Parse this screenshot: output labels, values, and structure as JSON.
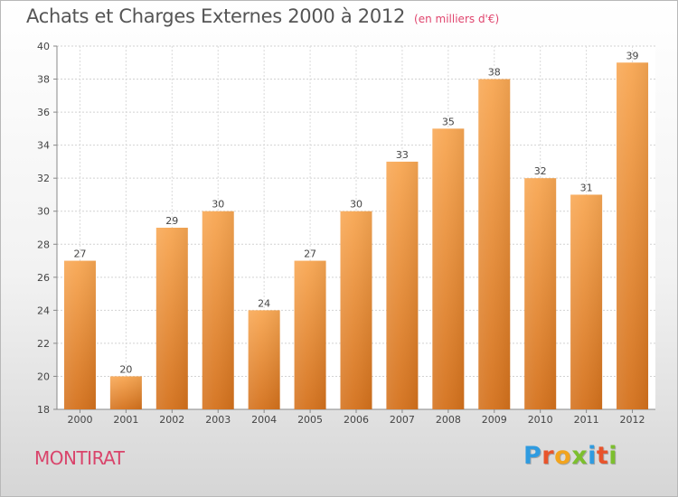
{
  "chart_data": {
    "type": "bar",
    "title": "Achats et Charges Externes 2000 à 2012",
    "subtitle": "(en milliers d'€)",
    "categories": [
      "2000",
      "2001",
      "2002",
      "2003",
      "2004",
      "2005",
      "2006",
      "2007",
      "2008",
      "2009",
      "2010",
      "2011",
      "2012"
    ],
    "values": [
      27,
      20,
      29,
      30,
      24,
      27,
      30,
      33,
      35,
      38,
      32,
      31,
      39
    ],
    "ylim": [
      18,
      40
    ],
    "yticks": [
      18,
      20,
      22,
      24,
      26,
      28,
      30,
      32,
      34,
      36,
      38,
      40
    ],
    "grid": true,
    "bar_color": "#f08a2b"
  },
  "footer": {
    "commune": "MONTIRAT",
    "brand": "Proxiti",
    "brand_colors": [
      "#2f9be0",
      "#e8542c",
      "#f2a41e",
      "#7cbf2e",
      "#2f9be0",
      "#e8542c",
      "#7cbf2e"
    ]
  }
}
